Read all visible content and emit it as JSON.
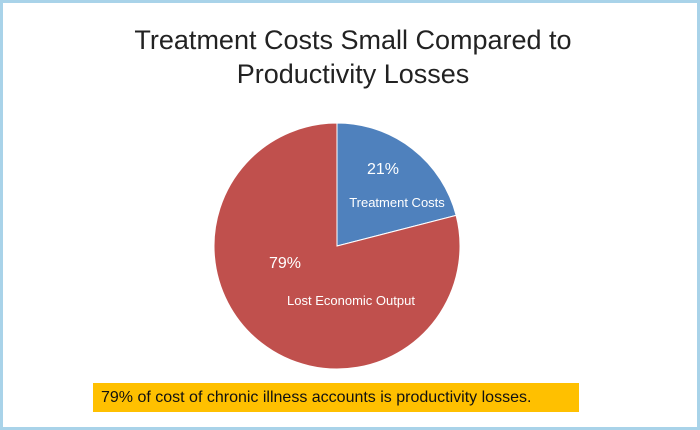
{
  "title": {
    "line1": "Treatment Costs Small Compared to",
    "line2": "Productivity Losses"
  },
  "chart_data": {
    "type": "pie",
    "title": "Treatment Costs Small Compared to Productivity Losses",
    "slices": [
      {
        "label": "Treatment Costs",
        "value": 21,
        "value_label": "21%",
        "color": "#4f81bd"
      },
      {
        "label": "Lost Economic Output",
        "value": 79,
        "value_label": "79%",
        "color": "#c0504d"
      }
    ],
    "start": "12 o'clock",
    "direction": "clockwise",
    "legend": "none"
  },
  "callout": {
    "text": "79% of cost of chronic illness accounts is productivity losses.",
    "background": "#ffc000"
  },
  "colors": {
    "border": "#a9d3e9"
  }
}
